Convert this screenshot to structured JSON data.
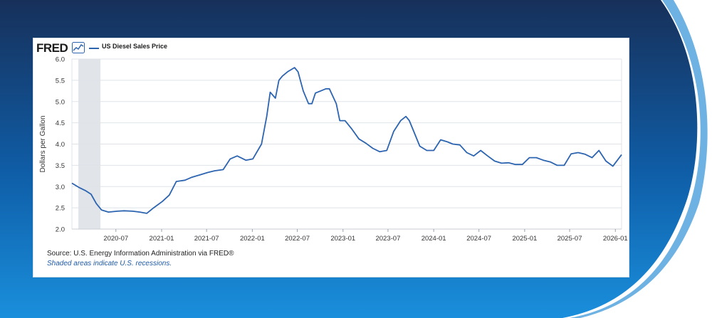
{
  "colors": {
    "bg_dark": "#17305a",
    "bg_mid": "#0f62ac",
    "bg_light": "#1687d6",
    "accent_curve": "#0d7fd0",
    "line": "#2c64b0",
    "recession": "#e1e5ea",
    "grid": "#dfe3e8"
  },
  "header": {
    "logo": "FRED",
    "logo_icon": "chart-line-icon",
    "series_label": "US Diesel Sales Price"
  },
  "footer": {
    "source": "Source: U.S. Energy Information Administration via FRED®",
    "note": "Shaded areas indicate U.S. recessions."
  },
  "chart_data": {
    "type": "line",
    "ylabel": "Dollars per Gallon",
    "ylim": [
      2.0,
      6.0
    ],
    "yticks": [
      "2.0",
      "2.5",
      "3.0",
      "3.5",
      "4.0",
      "4.5",
      "5.0",
      "5.5",
      "6.0"
    ],
    "xlim": [
      "2020-01-06",
      "2026-01-26"
    ],
    "xticks": [
      "2020-07",
      "2021-01",
      "2021-07",
      "2022-01",
      "2022-07",
      "2023-01",
      "2023-07",
      "2024-01",
      "2024-07",
      "2025-01",
      "2025-07",
      "2026-01"
    ],
    "grid": true,
    "recessions": [
      [
        "2020-02-01",
        "2020-04-30"
      ]
    ],
    "series": [
      {
        "name": "US Diesel Sales Price",
        "x": [
          "2020-01-06",
          "2020-02-03",
          "2020-03-02",
          "2020-03-23",
          "2020-04-13",
          "2020-05-04",
          "2020-06-01",
          "2020-07-06",
          "2020-08-03",
          "2020-09-07",
          "2020-10-05",
          "2020-11-02",
          "2020-11-30",
          "2021-01-04",
          "2021-02-01",
          "2021-03-01",
          "2021-04-05",
          "2021-05-03",
          "2021-06-07",
          "2021-07-05",
          "2021-08-02",
          "2021-09-06",
          "2021-10-04",
          "2021-11-01",
          "2021-12-06",
          "2022-01-03",
          "2022-02-07",
          "2022-02-28",
          "2022-03-14",
          "2022-04-04",
          "2022-04-18",
          "2022-05-02",
          "2022-05-23",
          "2022-06-20",
          "2022-07-04",
          "2022-07-25",
          "2022-08-15",
          "2022-08-29",
          "2022-09-12",
          "2022-10-03",
          "2022-10-24",
          "2022-11-07",
          "2022-12-05",
          "2022-12-19",
          "2023-01-09",
          "2023-02-06",
          "2023-03-06",
          "2023-04-03",
          "2023-05-01",
          "2023-05-29",
          "2023-06-26",
          "2023-07-24",
          "2023-08-21",
          "2023-09-11",
          "2023-09-25",
          "2023-10-16",
          "2023-11-06",
          "2023-12-04",
          "2024-01-01",
          "2024-01-29",
          "2024-02-26",
          "2024-03-18",
          "2024-04-15",
          "2024-05-13",
          "2024-06-10",
          "2024-07-08",
          "2024-08-05",
          "2024-09-02",
          "2024-09-30",
          "2024-10-28",
          "2024-11-25",
          "2024-12-23",
          "2025-01-20",
          "2025-02-17",
          "2025-03-17",
          "2025-04-14",
          "2025-05-12",
          "2025-06-09",
          "2025-07-07",
          "2025-08-04",
          "2025-09-01",
          "2025-09-29",
          "2025-10-27",
          "2025-11-24",
          "2025-12-22",
          "2026-01-26"
        ],
        "values": [
          3.08,
          2.98,
          2.9,
          2.82,
          2.6,
          2.45,
          2.4,
          2.42,
          2.43,
          2.42,
          2.4,
          2.37,
          2.5,
          2.65,
          2.8,
          3.12,
          3.15,
          3.22,
          3.28,
          3.33,
          3.37,
          3.4,
          3.65,
          3.72,
          3.62,
          3.65,
          4.0,
          4.65,
          5.22,
          5.08,
          5.5,
          5.6,
          5.7,
          5.8,
          5.7,
          5.25,
          4.95,
          4.95,
          5.2,
          5.25,
          5.3,
          5.3,
          4.95,
          4.55,
          4.55,
          4.35,
          4.12,
          4.02,
          3.9,
          3.82,
          3.85,
          4.3,
          4.55,
          4.65,
          4.55,
          4.25,
          3.95,
          3.85,
          3.85,
          4.1,
          4.05,
          4.0,
          3.98,
          3.8,
          3.72,
          3.85,
          3.72,
          3.6,
          3.55,
          3.56,
          3.52,
          3.52,
          3.68,
          3.68,
          3.62,
          3.58,
          3.5,
          3.5,
          3.77,
          3.8,
          3.76,
          3.68,
          3.85,
          3.6,
          3.48,
          3.75
        ]
      }
    ]
  }
}
